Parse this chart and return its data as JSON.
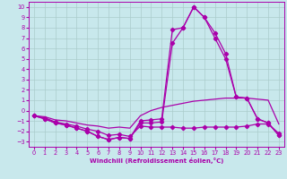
{
  "xlabel": "Windchill (Refroidissement éolien,°C)",
  "bg_color": "#c8e8ec",
  "grid_color": "#aacccc",
  "line_color": "#aa00aa",
  "xlim": [
    -0.5,
    23.5
  ],
  "ylim": [
    -3.5,
    10.5
  ],
  "xticks": [
    0,
    1,
    2,
    3,
    4,
    5,
    6,
    7,
    8,
    9,
    10,
    11,
    12,
    13,
    14,
    15,
    16,
    17,
    18,
    19,
    20,
    21,
    22,
    23
  ],
  "yticks": [
    -3,
    -2,
    -1,
    0,
    1,
    2,
    3,
    4,
    5,
    6,
    7,
    8,
    9,
    10
  ],
  "line_spike_x": [
    0,
    1,
    2,
    3,
    4,
    5,
    6,
    7,
    8,
    9,
    10,
    11,
    12,
    13,
    14,
    15,
    16,
    17,
    18,
    19,
    20,
    21,
    22,
    23
  ],
  "line_spike_y": [
    -0.5,
    -0.8,
    -1.2,
    -1.4,
    -1.7,
    -2.0,
    -2.5,
    -2.8,
    -2.6,
    -2.7,
    -1.2,
    -1.2,
    -1.1,
    6.5,
    8.0,
    10.0,
    9.0,
    7.0,
    5.0,
    1.3,
    1.2,
    -0.8,
    -1.2,
    -2.4
  ],
  "line_spike2_x": [
    0,
    1,
    2,
    3,
    4,
    5,
    6,
    7,
    8,
    9,
    10,
    11,
    12,
    13,
    14,
    15,
    16,
    17,
    18,
    19,
    20,
    21,
    22,
    23
  ],
  "line_spike2_y": [
    -0.5,
    -0.8,
    -1.2,
    -1.4,
    -1.7,
    -2.0,
    -2.5,
    -2.8,
    -2.6,
    -2.7,
    -1.0,
    -0.9,
    -0.8,
    7.8,
    8.0,
    10.0,
    9.0,
    7.5,
    5.5,
    1.3,
    1.2,
    -0.8,
    -1.2,
    -2.4
  ],
  "line_flat_x": [
    0,
    1,
    2,
    3,
    4,
    5,
    6,
    7,
    8,
    9,
    10,
    11,
    12,
    13,
    14,
    15,
    16,
    17,
    18,
    19,
    20,
    21,
    22,
    23
  ],
  "line_flat_y": [
    -0.5,
    -0.7,
    -1.1,
    -1.3,
    -1.5,
    -1.8,
    -2.0,
    -2.4,
    -2.3,
    -2.5,
    -1.5,
    -1.6,
    -1.6,
    -1.6,
    -1.7,
    -1.7,
    -1.6,
    -1.6,
    -1.6,
    -1.6,
    -1.5,
    -1.3,
    -1.3,
    -2.2
  ],
  "line_rise_x": [
    0,
    1,
    2,
    3,
    4,
    5,
    6,
    7,
    8,
    9,
    10,
    11,
    12,
    13,
    14,
    15,
    16,
    17,
    18,
    19,
    20,
    21,
    22,
    23
  ],
  "line_rise_y": [
    -0.5,
    -0.6,
    -0.9,
    -1.0,
    -1.2,
    -1.4,
    -1.5,
    -1.7,
    -1.6,
    -1.7,
    -0.5,
    0.0,
    0.3,
    0.5,
    0.7,
    0.9,
    1.0,
    1.1,
    1.2,
    1.2,
    1.2,
    1.1,
    1.0,
    -1.3
  ]
}
